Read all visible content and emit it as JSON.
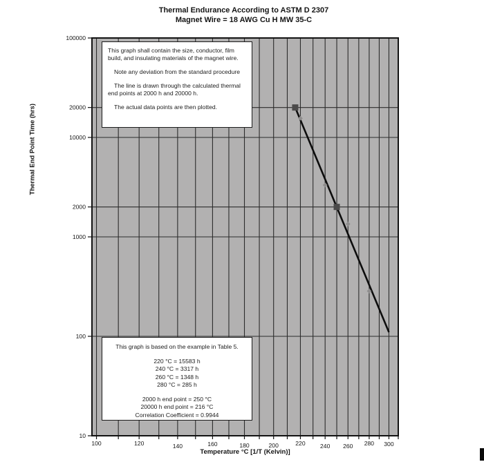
{
  "header": {
    "title_line1": "Thermal Endurance According to ASTM D 2307",
    "title_line2": "Magnet Wire = 18 AWG Cu H MW 35-C"
  },
  "annotation_top": {
    "paragraphs": [
      "This graph shall contain the size, conductor, film build, and insulating materials of the magnet wire.",
      "Note any deviation from the standard procedure",
      "The line is drawn through the calculated thermal end points at 2000 h and 20000 h.",
      "The actual data points are then plotted."
    ]
  },
  "annotation_bottom": {
    "intro": "This graph is based on the example in Table 5.",
    "data_lines": [
      "220 °C = 15583 h",
      "240 °C = 3317 h",
      "260 °C = 1348 h",
      "280 °C = 285 h"
    ],
    "summary_lines": [
      "2000 h end point = 250 °C",
      "20000 h end point = 216 °C",
      "Correlation Coefficient = 0.9944"
    ]
  },
  "chart_data": {
    "type": "scatter",
    "title": "Thermal Endurance According to ASTM D 2307 / Magnet Wire = 18 AWG Cu H MW 35-C",
    "xlabel": "Temperature °C [1/T (Kelvin)]",
    "ylabel": "Thermal End Point Time (hrs)",
    "x_scale": "reciprocal-kelvin",
    "y_scale": "log10",
    "xlim_c": [
      98,
      310
    ],
    "ylim_hrs": [
      10,
      100000
    ],
    "x_gridline_step_c": 10,
    "x_tick_labels_c": [
      100,
      120,
      140,
      160,
      180,
      200,
      220,
      240,
      260,
      280,
      300
    ],
    "y_tick_values_hrs": [
      100000,
      20000,
      10000,
      2000,
      1000,
      100,
      10
    ],
    "grid": "on",
    "data_points": [
      {
        "temp_c": 220,
        "hours": 15583
      },
      {
        "temp_c": 240,
        "hours": 3317
      },
      {
        "temp_c": 260,
        "hours": 1348
      },
      {
        "temp_c": 280,
        "hours": 285
      }
    ],
    "calculated_end_points": [
      {
        "temp_c": 216,
        "hours": 20000
      },
      {
        "temp_c": 250,
        "hours": 2000
      }
    ],
    "trend_line": {
      "from": {
        "temp_c": 216,
        "hours": 20000
      },
      "to": {
        "temp_c": 300,
        "hours": 110
      }
    },
    "correlation_coefficient": 0.9944
  },
  "colors": {
    "plot_background": "#b2b1b1",
    "gridline": "#2b2b2b",
    "plot_border": "#111111",
    "trend_line": "#0d0d0d",
    "end_point_marker": "#4b4a4a",
    "data_point_marker": "#8e8d8d",
    "text": "#161616"
  }
}
